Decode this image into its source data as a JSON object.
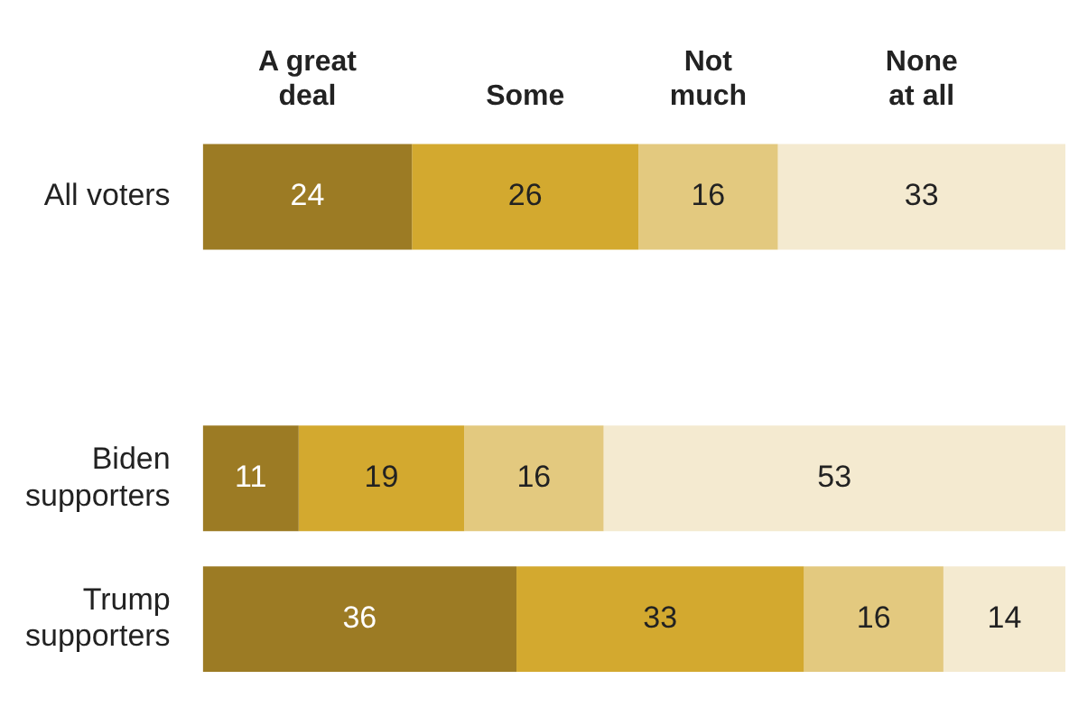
{
  "chart_data": {
    "type": "bar",
    "orientation": "horizontal",
    "stacked": true,
    "data_labels": true,
    "legend": "top",
    "categories": [
      "All voters",
      null,
      "Biden supporters",
      "Trump supporters"
    ],
    "series": [
      {
        "name": "A great deal",
        "color": "#9c7b24",
        "values": [
          24,
          null,
          11,
          36
        ]
      },
      {
        "name": "Some",
        "color": "#d3a92f",
        "values": [
          26,
          null,
          19,
          33
        ]
      },
      {
        "name": "Not much",
        "color": "#e3c97f",
        "values": [
          16,
          null,
          16,
          16
        ]
      },
      {
        "name": "None at all",
        "color": "#f4ead0",
        "values": [
          33,
          null,
          53,
          14
        ]
      }
    ]
  }
}
